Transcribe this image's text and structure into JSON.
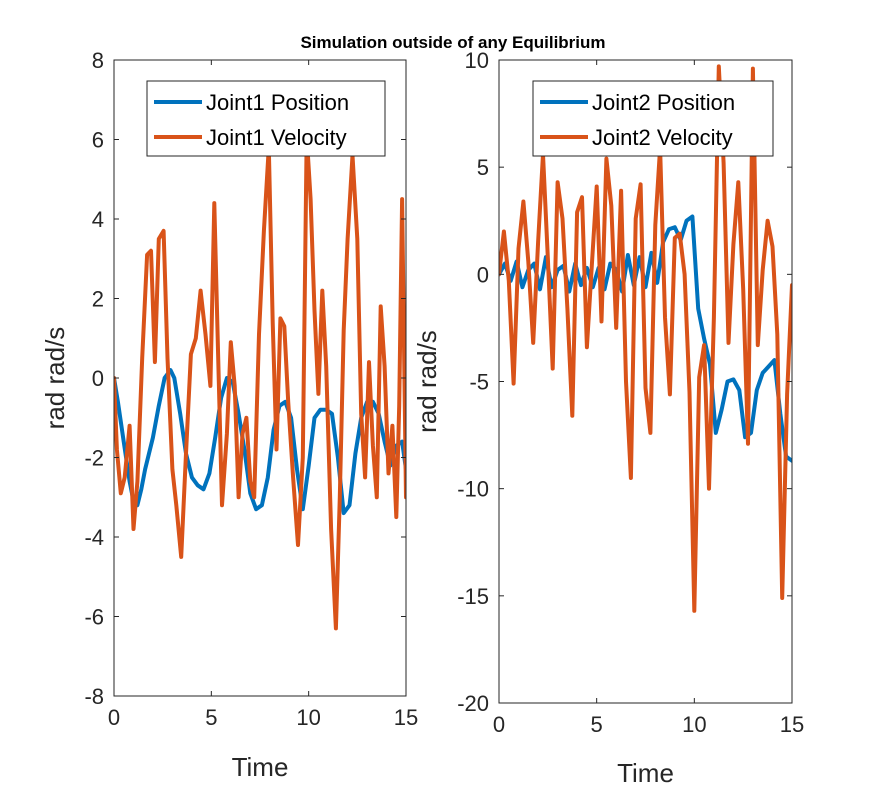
{
  "figure_title": "Simulation outside of any Equilibrium",
  "colors": {
    "position": "#0072BD",
    "velocity": "#D95319",
    "axis": "#262626",
    "background": "#ffffff"
  },
  "chart_data": [
    {
      "type": "line",
      "xlabel": "Time",
      "ylabel": "rad rad/s",
      "xlim": [
        0,
        15
      ],
      "ylim": [
        -8,
        8
      ],
      "xticks": [
        0,
        5,
        10,
        15
      ],
      "yticks": [
        -8,
        -6,
        -4,
        -2,
        0,
        2,
        4,
        6,
        8
      ],
      "grid": false,
      "legend": "top-right",
      "series": [
        {
          "name": "Joint1 Position",
          "color": "#0072BD",
          "x": [
            0,
            0.2,
            0.5,
            0.8,
            1.0,
            1.2,
            1.4,
            1.6,
            1.8,
            2.0,
            2.3,
            2.6,
            2.9,
            3.1,
            3.4,
            3.7,
            4.0,
            4.3,
            4.6,
            4.9,
            5.2,
            5.5,
            5.8,
            6.1,
            6.4,
            6.7,
            7.0,
            7.3,
            7.6,
            7.9,
            8.2,
            8.5,
            8.8,
            9.1,
            9.4,
            9.7,
            10.0,
            10.3,
            10.6,
            10.9,
            11.2,
            11.5,
            11.8,
            12.1,
            12.4,
            12.7,
            13.0,
            13.3,
            13.6,
            13.9,
            14.2,
            14.5,
            14.8,
            15.0
          ],
          "y": [
            0.0,
            -0.6,
            -1.6,
            -2.6,
            -3.1,
            -3.2,
            -2.8,
            -2.3,
            -1.9,
            -1.5,
            -0.7,
            0.0,
            0.2,
            0.0,
            -0.9,
            -1.9,
            -2.5,
            -2.7,
            -2.8,
            -2.4,
            -1.5,
            -0.5,
            0.0,
            -0.1,
            -0.9,
            -1.8,
            -2.9,
            -3.3,
            -3.2,
            -2.5,
            -1.3,
            -0.7,
            -0.6,
            -1.0,
            -2.3,
            -3.3,
            -2.2,
            -1.0,
            -0.8,
            -0.8,
            -0.9,
            -2.0,
            -3.4,
            -3.2,
            -1.9,
            -1.0,
            -0.6,
            -0.6,
            -0.9,
            -1.6,
            -2.2,
            -1.7,
            -1.6,
            -2.3
          ]
        },
        {
          "name": "Joint1 Velocity",
          "color": "#D95319",
          "x": [
            0,
            0.15,
            0.35,
            0.55,
            0.8,
            1.0,
            1.2,
            1.45,
            1.7,
            1.9,
            2.1,
            2.3,
            2.55,
            2.75,
            3.0,
            3.2,
            3.45,
            3.7,
            3.95,
            4.2,
            4.45,
            4.7,
            4.95,
            5.15,
            5.35,
            5.55,
            5.8,
            6.0,
            6.2,
            6.4,
            6.6,
            6.8,
            7.0,
            7.2,
            7.45,
            7.7,
            7.95,
            8.15,
            8.35,
            8.55,
            8.75,
            8.95,
            9.2,
            9.45,
            9.7,
            9.9,
            10.1,
            10.3,
            10.5,
            10.7,
            10.9,
            11.15,
            11.4,
            11.6,
            11.8,
            12.0,
            12.25,
            12.5,
            12.7,
            12.9,
            13.1,
            13.3,
            13.5,
            13.7,
            13.9,
            14.1,
            14.3,
            14.5,
            14.65,
            14.8,
            15.0
          ],
          "y": [
            0.0,
            -1.8,
            -2.9,
            -2.5,
            -1.2,
            -3.8,
            -2.6,
            0.5,
            3.1,
            3.2,
            0.4,
            3.5,
            3.7,
            0.5,
            -2.3,
            -3.2,
            -4.5,
            -1.9,
            0.6,
            1.0,
            2.2,
            1.1,
            -0.2,
            4.4,
            0.6,
            -3.2,
            -1.4,
            0.9,
            -0.2,
            -3.0,
            -1.4,
            -1.0,
            -2.6,
            -3.0,
            1.1,
            3.7,
            5.8,
            1.4,
            -1.8,
            1.5,
            1.3,
            -0.6,
            -2.5,
            -4.2,
            -2.0,
            6.1,
            4.5,
            1.7,
            -0.4,
            2.2,
            0.3,
            -3.8,
            -6.3,
            -3.0,
            1.2,
            3.5,
            5.6,
            3.5,
            -0.9,
            -2.5,
            0.4,
            -1.7,
            -3.0,
            1.8,
            0.3,
            -2.4,
            -1.2,
            -3.5,
            -0.7,
            4.5,
            -3.0
          ]
        }
      ]
    },
    {
      "type": "line",
      "xlabel": "Time",
      "ylabel": "rad rad/s",
      "xlim": [
        0,
        15
      ],
      "ylim": [
        -20,
        10
      ],
      "xticks": [
        0,
        5,
        10,
        15
      ],
      "yticks": [
        -20,
        -15,
        -10,
        -5,
        0,
        5,
        10
      ],
      "grid": false,
      "legend": "top-right",
      "series": [
        {
          "name": "Joint2 Position",
          "color": "#0072BD",
          "x": [
            0,
            0.3,
            0.6,
            0.9,
            1.2,
            1.5,
            1.8,
            2.1,
            2.4,
            2.7,
            3.0,
            3.3,
            3.6,
            3.9,
            4.2,
            4.5,
            4.8,
            5.1,
            5.4,
            5.7,
            6.0,
            6.3,
            6.6,
            6.9,
            7.2,
            7.5,
            7.8,
            8.1,
            8.4,
            8.7,
            9.0,
            9.3,
            9.6,
            9.9,
            10.2,
            10.5,
            10.8,
            11.1,
            11.4,
            11.7,
            12.0,
            12.3,
            12.6,
            12.9,
            13.2,
            13.5,
            13.8,
            14.1,
            14.4,
            14.7,
            15.0
          ],
          "y": [
            0.0,
            0.5,
            -0.3,
            0.6,
            -0.6,
            0.2,
            0.5,
            -0.7,
            0.8,
            -0.6,
            0.2,
            0.4,
            -0.8,
            0.5,
            -0.5,
            0.3,
            -0.6,
            0.3,
            -0.7,
            0.5,
            0.2,
            -0.8,
            0.9,
            -0.5,
            0.8,
            -0.6,
            1.0,
            -0.4,
            1.5,
            2.1,
            2.2,
            1.6,
            2.5,
            2.7,
            -1.6,
            -3.0,
            -4.2,
            -7.4,
            -6.3,
            -5.0,
            -4.9,
            -5.4,
            -7.6,
            -7.4,
            -5.4,
            -4.6,
            -4.3,
            -4.0,
            -6.5,
            -8.5,
            -8.7
          ]
        },
        {
          "name": "Joint2 Velocity",
          "color": "#D95319",
          "x": [
            0,
            0.25,
            0.5,
            0.75,
            1.0,
            1.25,
            1.5,
            1.75,
            2.0,
            2.25,
            2.5,
            2.75,
            3.0,
            3.25,
            3.5,
            3.75,
            4.0,
            4.25,
            4.5,
            4.75,
            5.0,
            5.25,
            5.5,
            5.75,
            6.0,
            6.25,
            6.5,
            6.75,
            7.0,
            7.25,
            7.5,
            7.75,
            8.0,
            8.25,
            8.5,
            8.75,
            9.0,
            9.25,
            9.5,
            9.75,
            10.0,
            10.25,
            10.5,
            10.75,
            11.0,
            11.25,
            11.5,
            11.75,
            12.0,
            12.25,
            12.5,
            12.75,
            13.0,
            13.25,
            13.5,
            13.75,
            14.0,
            14.25,
            14.5,
            14.75,
            15.0
          ],
          "y": [
            0.0,
            2.0,
            -0.3,
            -5.1,
            1.2,
            3.4,
            0.6,
            -3.2,
            1.5,
            5.6,
            0.8,
            -4.4,
            4.3,
            2.6,
            -1.6,
            -6.6,
            2.9,
            3.6,
            -3.4,
            0.4,
            4.1,
            -2.2,
            5.4,
            3.2,
            -2.5,
            3.9,
            -5.0,
            -9.5,
            2.6,
            4.2,
            -5.3,
            -7.4,
            2.3,
            5.9,
            -2.0,
            -5.6,
            1.7,
            1.9,
            0.0,
            -5.5,
            -15.7,
            -4.8,
            -3.3,
            -10.0,
            -2.0,
            9.7,
            5.2,
            -3.2,
            1.4,
            4.3,
            -0.7,
            -7.9,
            9.6,
            -3.3,
            0.2,
            2.5,
            1.3,
            -2.8,
            -15.1,
            -5.6,
            -0.5
          ]
        }
      ]
    }
  ]
}
